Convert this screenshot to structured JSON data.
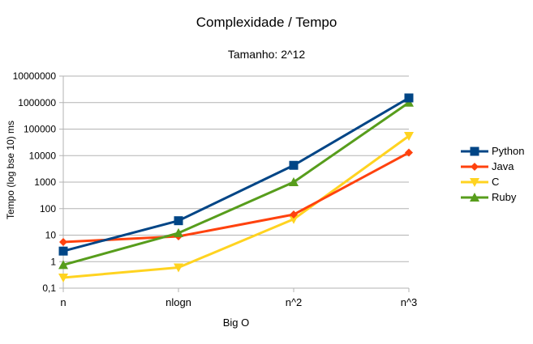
{
  "chart_data": {
    "type": "line",
    "title": "Complexidade / Tempo",
    "subtitle": "Tamanho: 2^12",
    "xlabel": "Big O",
    "ylabel": "Tempo (log bse 10) ms",
    "yscale": "log",
    "ylim": [
      0.1,
      10000000
    ],
    "yticks": [
      "0,1",
      "1",
      "10",
      "100",
      "1000",
      "10000",
      "100000",
      "1000000",
      "10000000"
    ],
    "categories": [
      "n",
      "nlogn",
      "n^2",
      "n^3"
    ],
    "grid": "horizontal",
    "legend_position": "right",
    "series": [
      {
        "name": "Python",
        "color": "#004586",
        "marker": "square",
        "values": [
          2.5,
          35,
          4300,
          1500000
        ]
      },
      {
        "name": "Java",
        "color": "#ff420e",
        "marker": "diamond",
        "values": [
          5.5,
          9,
          60,
          13000
        ]
      },
      {
        "name": "C",
        "color": "#ffd320",
        "marker": "triangle-down",
        "values": [
          0.25,
          0.6,
          40,
          55000
        ]
      },
      {
        "name": "Ruby",
        "color": "#579d1c",
        "marker": "triangle-up",
        "values": [
          0.75,
          12,
          1000,
          1000000
        ]
      }
    ]
  }
}
